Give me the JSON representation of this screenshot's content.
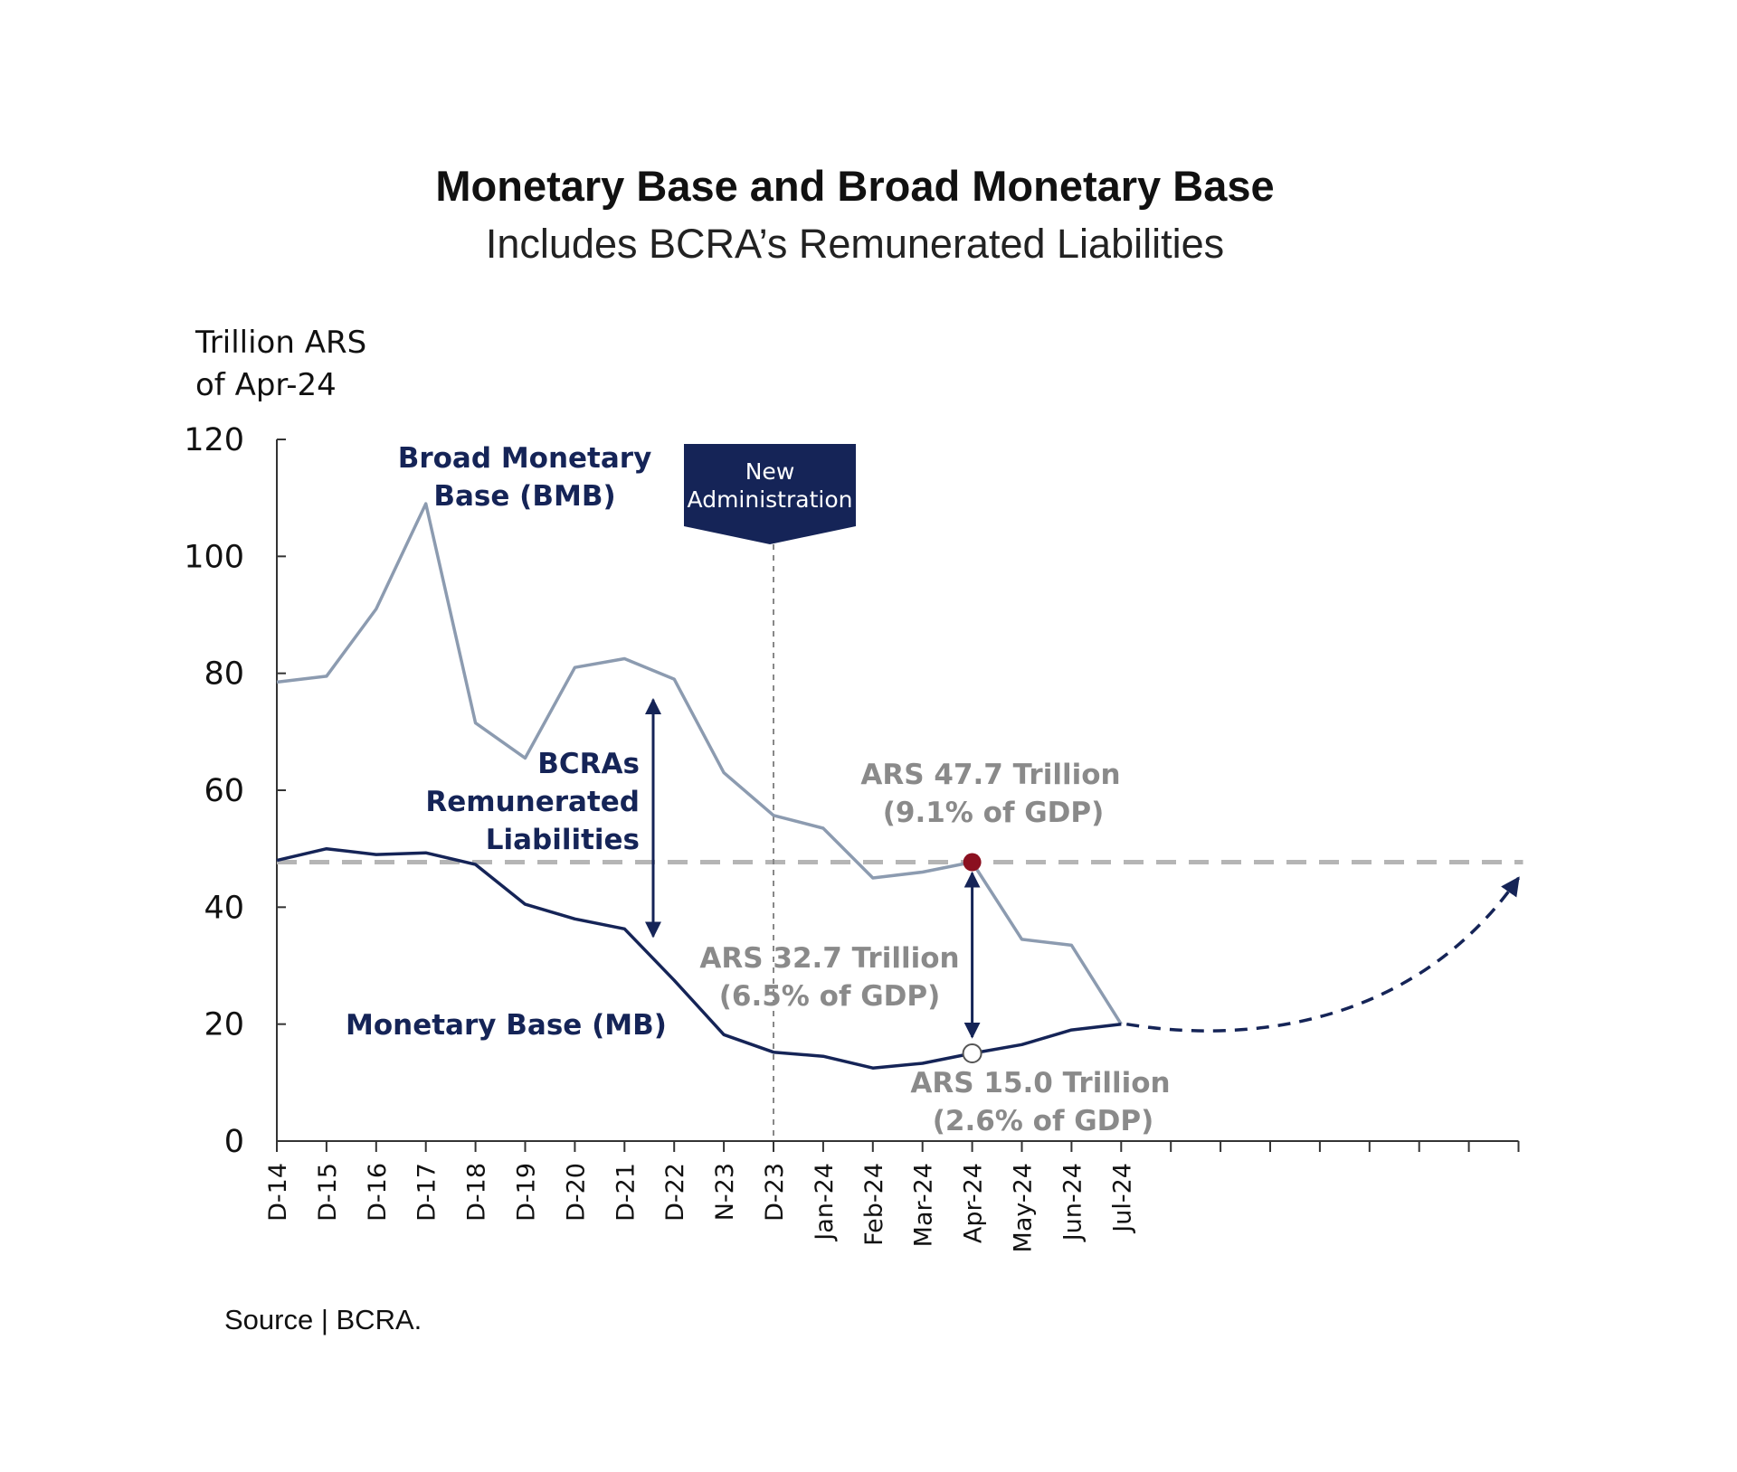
{
  "title": "Monetary Base and Broad Monetary Base",
  "subtitle": "Includes BCRA’s  Remunerated Liabilities",
  "source": "Source | BCRA.",
  "colors": {
    "bmb_line": "#8c9bb0",
    "mb_line": "#152457",
    "reference_dashed": "#b5b5b5",
    "banner": "#152457",
    "marker_red": "#8b1020",
    "annotation_gray": "#8a8a8a"
  },
  "chart_data": {
    "type": "line",
    "ylabel_lines": [
      "Trillion ARS",
      "of Apr-24"
    ],
    "ylim": [
      0,
      120
    ],
    "yticks": [
      0,
      20,
      40,
      60,
      80,
      100,
      120
    ],
    "categories": [
      "D-14",
      "D-15",
      "D-16",
      "D-17",
      "D-18",
      "D-19",
      "D-20",
      "D-21",
      "D-22",
      "N-23",
      "D-23",
      "Jan-24",
      "Feb-24",
      "Mar-24",
      "Apr-24",
      "May-24",
      "Jun-24",
      "Jul-24"
    ],
    "extra_ticks": 8,
    "series": [
      {
        "name": "Broad Monetary Base (BMB)",
        "label_lines": [
          "Broad Monetary",
          "Base (BMB)"
        ],
        "values": [
          78.5,
          79.5,
          91,
          109,
          71.5,
          65.5,
          81,
          82.5,
          79,
          63,
          55.7,
          53.5,
          45,
          46,
          47.7,
          34.5,
          33.5,
          20
        ]
      },
      {
        "name": "Monetary Base (MB)",
        "label_lines": [
          "Monetary Base (MB)"
        ],
        "values": [
          48,
          50,
          49,
          49.3,
          47.3,
          40.5,
          38,
          36.3,
          27.5,
          18.2,
          15.2,
          14.5,
          12.5,
          13.3,
          15,
          16.5,
          19,
          20
        ]
      }
    ],
    "reference_line": {
      "value": 47.7,
      "style": "dashed"
    },
    "projection": {
      "from": {
        "category_index": 17,
        "value": 20
      },
      "to": {
        "category_index": 25,
        "value": 45
      },
      "style": "dashed-arrow"
    },
    "event": {
      "category": "D-23",
      "label_lines": [
        "New",
        "Administration"
      ]
    },
    "gap_label_lines": [
      "BCRAs",
      "Remunerated",
      "Liabilities"
    ],
    "annotations": [
      {
        "category": "Apr-24",
        "series": "Broad Monetary Base (BMB)",
        "value": 47.7,
        "lines": [
          "ARS 47.7 Trillion",
          "(9.1% of GDP)"
        ]
      },
      {
        "category": "Apr-24",
        "series": "Monetary Base (MB)",
        "value": 15.0,
        "lines": [
          "ARS 15.0 Trillion",
          "(2.6% of GDP)"
        ]
      },
      {
        "category": "Apr-24",
        "lines": [
          "ARS 32.7 Trillion",
          "(6.5% of GDP)"
        ]
      }
    ]
  }
}
